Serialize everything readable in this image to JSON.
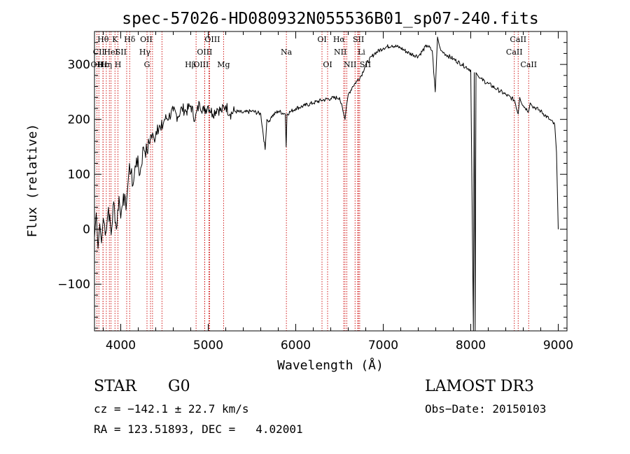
{
  "chart_data": {
    "type": "line",
    "title": "spec-57026-HD080932N055536B01_sp07-240.fits",
    "xlabel": "Wavelength (Å)",
    "ylabel": "Flux (relative)",
    "xlim": [
      3700,
      9100
    ],
    "ylim": [
      -185,
      360
    ],
    "x_ticks": [
      4000,
      5000,
      6000,
      7000,
      8000,
      9000
    ],
    "y_ticks": [
      -100,
      0,
      100,
      200,
      300
    ],
    "series": [
      {
        "x": [
          3700,
          3720,
          3740,
          3760,
          3780,
          3800,
          3830,
          3860,
          3890,
          3920,
          3950,
          3980,
          4000,
          4030,
          4060,
          4100,
          4140,
          4180,
          4220,
          4260,
          4300,
          4340,
          4380,
          4420,
          4460,
          4500,
          4550,
          4600,
          4650,
          4700,
          4750,
          4800,
          4850,
          4900,
          4950,
          5000,
          5050,
          5100,
          5150,
          5200,
          5250,
          5300,
          5400,
          5500,
          5600,
          5650,
          5670,
          5690,
          5720,
          5800,
          5880,
          5890,
          5900,
          5950,
          6000,
          6100,
          6200,
          6300,
          6400,
          6500,
          6540,
          6563,
          6580,
          6600,
          6650,
          6700,
          6750,
          6800,
          6900,
          7000,
          7100,
          7200,
          7300,
          7400,
          7500,
          7560,
          7594,
          7620,
          7640,
          7660,
          7700,
          7800,
          7900,
          8000,
          8030,
          8040,
          8050,
          8060,
          8080,
          8100,
          8200,
          8300,
          8400,
          8500,
          8542,
          8560,
          8600,
          8662,
          8680,
          8700,
          8800,
          8900,
          8960,
          8980,
          9000
        ],
        "values": [
          -15,
          30,
          -35,
          10,
          -25,
          20,
          -5,
          40,
          -10,
          50,
          0,
          60,
          20,
          65,
          35,
          120,
          80,
          130,
          100,
          150,
          140,
          170,
          165,
          190,
          180,
          200,
          205,
          215,
          205,
          220,
          215,
          225,
          200,
          230,
          215,
          225,
          210,
          220,
          215,
          225,
          210,
          215,
          212,
          215,
          210,
          145,
          200,
          195,
          205,
          215,
          210,
          150,
          210,
          215,
          220,
          225,
          230,
          235,
          238,
          240,
          215,
          200,
          225,
          245,
          260,
          270,
          280,
          300,
          320,
          330,
          335,
          330,
          320,
          315,
          335,
          325,
          250,
          350,
          335,
          325,
          320,
          310,
          300,
          290,
          -185,
          285,
          -185,
          285,
          280,
          275,
          265,
          255,
          245,
          235,
          210,
          240,
          225,
          215,
          230,
          225,
          215,
          200,
          190,
          140,
          0
        ]
      }
    ],
    "line_markers": [
      {
        "label": "Hθ",
        "x": 3798,
        "row": 0,
        "anchor": "middle"
      },
      {
        "label": "K",
        "x": 3934,
        "row": 0,
        "anchor": "middle"
      },
      {
        "label": "Hδ",
        "x": 4102,
        "row": 0,
        "anchor": "middle"
      },
      {
        "label": "OII",
        "x": 4363,
        "row": 0,
        "anchor": "end"
      },
      {
        "label": "OIII",
        "x": 4959,
        "row": 0,
        "anchor": "start"
      },
      {
        "label": "OI",
        "x": 6300,
        "row": 0,
        "anchor": "middle"
      },
      {
        "label": "Hα",
        "x": 6563,
        "row": 0,
        "anchor": "end"
      },
      {
        "label": "SII",
        "x": 6717,
        "row": 0,
        "anchor": "middle"
      },
      {
        "label": "CaII",
        "x": 8542,
        "row": 0,
        "anchor": "middle"
      },
      {
        "label": "CII",
        "x": 3750,
        "row": 1,
        "anchor": "middle"
      },
      {
        "label": "HeI",
        "x": 3889,
        "row": 1,
        "anchor": "middle"
      },
      {
        "label": "SII",
        "x": 4068,
        "row": 1,
        "anchor": "end"
      },
      {
        "label": "Hγ",
        "x": 4340,
        "row": 1,
        "anchor": "end"
      },
      {
        "label": "OIII",
        "x": 4959,
        "row": 1,
        "anchor": "middle"
      },
      {
        "label": "Na",
        "x": 5893,
        "row": 1,
        "anchor": "middle"
      },
      {
        "label": "NII",
        "x": 6583,
        "row": 1,
        "anchor": "end"
      },
      {
        "label": "Li",
        "x": 6708,
        "row": 1,
        "anchor": "start"
      },
      {
        "label": "CaII",
        "x": 8498,
        "row": 1,
        "anchor": "middle"
      },
      {
        "label": "OII",
        "x": 3727,
        "row": 2,
        "anchor": "middle"
      },
      {
        "label": "Hε",
        "x": 3797,
        "row": 2,
        "anchor": "middle"
      },
      {
        "label": "Hη",
        "x": 3835,
        "row": 2,
        "anchor": "middle"
      },
      {
        "label": "H",
        "x": 3968,
        "row": 2,
        "anchor": "middle"
      },
      {
        "label": "G",
        "x": 4300,
        "row": 2,
        "anchor": "middle"
      },
      {
        "label": "Hβ",
        "x": 4861,
        "row": 2,
        "anchor": "end"
      },
      {
        "label": "OIII",
        "x": 5007,
        "row": 2,
        "anchor": "end"
      },
      {
        "label": "Mg",
        "x": 5175,
        "row": 2,
        "anchor": "middle"
      },
      {
        "label": "OI",
        "x": 6364,
        "row": 2,
        "anchor": "middle"
      },
      {
        "label": "NII",
        "x": 6548,
        "row": 2,
        "anchor": "start"
      },
      {
        "label": "SII",
        "x": 6731,
        "row": 2,
        "anchor": "start"
      },
      {
        "label": "CaII",
        "x": 8662,
        "row": 2,
        "anchor": "middle"
      }
    ],
    "extra_line_positions": [
      3870,
      4471,
      5016,
      6678
    ],
    "colors": {
      "spectrum": "#000000",
      "markers": "#cc0000",
      "axes": "#000000"
    }
  },
  "info": {
    "object_class": "STAR",
    "subclass": "G0",
    "survey": "LAMOST DR3",
    "redshift": "cz = −142.1 ± 22.7 km/s",
    "obs_date": "Obs−Date: 20150103",
    "coords": "RA = 123.51893, DEC =   4.02001"
  }
}
